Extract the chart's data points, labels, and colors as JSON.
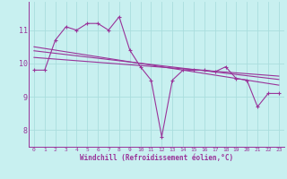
{
  "xlabel": "Windchill (Refroidissement éolien,°C)",
  "background_color": "#c8f0f0",
  "line_color": "#993399",
  "grid_color": "#aadddd",
  "xlim": [
    -0.5,
    23.5
  ],
  "ylim": [
    7.5,
    11.85
  ],
  "yticks": [
    8,
    9,
    10,
    11
  ],
  "xticks": [
    0,
    1,
    2,
    3,
    4,
    5,
    6,
    7,
    8,
    9,
    10,
    11,
    12,
    13,
    14,
    15,
    16,
    17,
    18,
    19,
    20,
    21,
    22,
    23
  ],
  "main_line_x": [
    0,
    1,
    2,
    3,
    4,
    5,
    6,
    7,
    8,
    9,
    10,
    11,
    12,
    13,
    14,
    15,
    16,
    17,
    18,
    19,
    20,
    21,
    22,
    23
  ],
  "main_line_y": [
    9.8,
    9.8,
    10.7,
    11.1,
    11.0,
    11.2,
    11.2,
    11.0,
    11.4,
    10.4,
    9.9,
    9.5,
    7.8,
    9.5,
    9.8,
    9.8,
    9.8,
    9.75,
    9.9,
    9.55,
    9.5,
    8.7,
    9.1,
    9.1
  ],
  "trend1_x": [
    0,
    23
  ],
  "trend1_y": [
    10.5,
    9.35
  ],
  "trend2_x": [
    0,
    23
  ],
  "trend2_y": [
    10.38,
    9.52
  ],
  "trend3_x": [
    0,
    23
  ],
  "trend3_y": [
    10.18,
    9.62
  ]
}
